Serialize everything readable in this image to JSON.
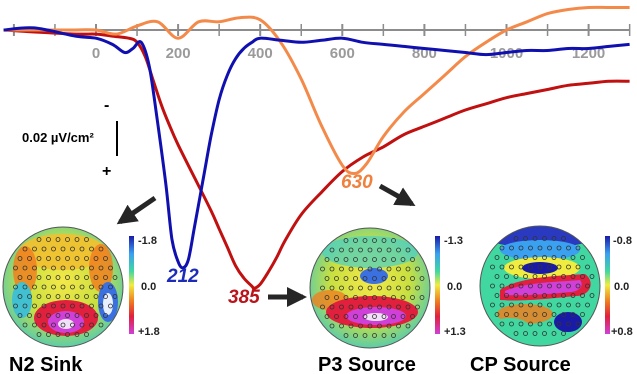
{
  "chart_data": {
    "type": "line",
    "xticks": [
      0,
      200,
      400,
      600,
      800,
      1000,
      1200
    ],
    "xlim": [
      -225,
      1300
    ],
    "y_inverted": true,
    "scale_bar": {
      "value": "0.02 µV/cm²",
      "negative_symbol": "-",
      "positive_symbol": "+"
    },
    "series": [
      {
        "color": "#1010b0",
        "x": [
          -225,
          -150,
          -50,
          0,
          40,
          70,
          90,
          110,
          130,
          150,
          170,
          185,
          200,
          212,
          225,
          240,
          260,
          280,
          300,
          320,
          340,
          360,
          380,
          400,
          450,
          500,
          550,
          600,
          650,
          700,
          750,
          800,
          850,
          900,
          950,
          1000,
          1050,
          1100,
          1150,
          1200,
          1250,
          1300
        ],
        "y": [
          0.0,
          -0.001,
          0.003,
          0.004,
          0.007,
          0.011,
          0.009,
          0.006,
          0.018,
          0.045,
          0.075,
          0.102,
          0.113,
          0.116,
          0.112,
          0.096,
          0.074,
          0.052,
          0.034,
          0.022,
          0.014,
          0.009,
          0.006,
          0.004,
          0.005,
          0.006,
          0.005,
          0.004,
          0.006,
          0.007,
          0.008,
          0.009,
          0.01,
          0.011,
          0.012,
          0.011,
          0.01,
          0.01,
          0.009,
          0.009,
          0.008,
          0.007
        ]
      },
      {
        "color": "#c01010",
        "x": [
          -225,
          -150,
          -50,
          0,
          40,
          80,
          100,
          120,
          140,
          160,
          180,
          200,
          240,
          280,
          300,
          320,
          340,
          360,
          380,
          385,
          400,
          420,
          440,
          460,
          500,
          550,
          600,
          650,
          700,
          750,
          800,
          850,
          900,
          950,
          1000,
          1050,
          1100,
          1150,
          1200,
          1250,
          1300
        ],
        "y": [
          0.0,
          0.001,
          0.002,
          0.002,
          0.003,
          0.004,
          0.006,
          0.013,
          0.025,
          0.037,
          0.047,
          0.056,
          0.072,
          0.088,
          0.097,
          0.106,
          0.115,
          0.121,
          0.125,
          0.126,
          0.124,
          0.118,
          0.111,
          0.103,
          0.09,
          0.079,
          0.069,
          0.062,
          0.057,
          0.051,
          0.047,
          0.043,
          0.039,
          0.036,
          0.033,
          0.031,
          0.029,
          0.027,
          0.026,
          0.025,
          0.025
        ]
      },
      {
        "color": "#f48a4a",
        "x": [
          -225,
          -150,
          -50,
          0,
          50,
          100,
          150,
          200,
          250,
          300,
          350,
          400,
          450,
          500,
          550,
          600,
          630,
          660,
          700,
          750,
          800,
          850,
          900,
          950,
          1000,
          1050,
          1100,
          1150,
          1200,
          1250,
          1300
        ],
        "y": [
          0.0,
          0.0,
          0.0,
          0.0,
          0.002,
          -0.002,
          -0.004,
          0.004,
          -0.004,
          -0.004,
          -0.006,
          -0.005,
          0.006,
          0.024,
          0.047,
          0.066,
          0.07,
          0.065,
          0.052,
          0.04,
          0.031,
          0.022,
          0.013,
          0.006,
          0.0,
          -0.004,
          -0.008,
          -0.01,
          -0.011,
          -0.011,
          -0.011
        ]
      }
    ],
    "peaks": [
      {
        "label": "212",
        "color": "#1c2cb8"
      },
      {
        "label": "385",
        "color": "#b8141a"
      },
      {
        "label": "630",
        "color": "#f0803c"
      }
    ]
  },
  "maps": [
    {
      "title": "N2 Sink",
      "cbar": {
        "top": "-1.8",
        "mid": "0.0",
        "bottom": "+1.8"
      }
    },
    {
      "title": "P3 Source",
      "cbar": {
        "top": "-1.3",
        "mid": "0.0",
        "bottom": "+1.3"
      }
    },
    {
      "title": "CP Source",
      "cbar": {
        "top": "-0.8",
        "mid": "0.0",
        "bottom": "+0.8"
      }
    }
  ],
  "colors": {
    "axis": "#8c8c8c",
    "tick_label": "#9a9a9a",
    "arrow": "#262626"
  }
}
